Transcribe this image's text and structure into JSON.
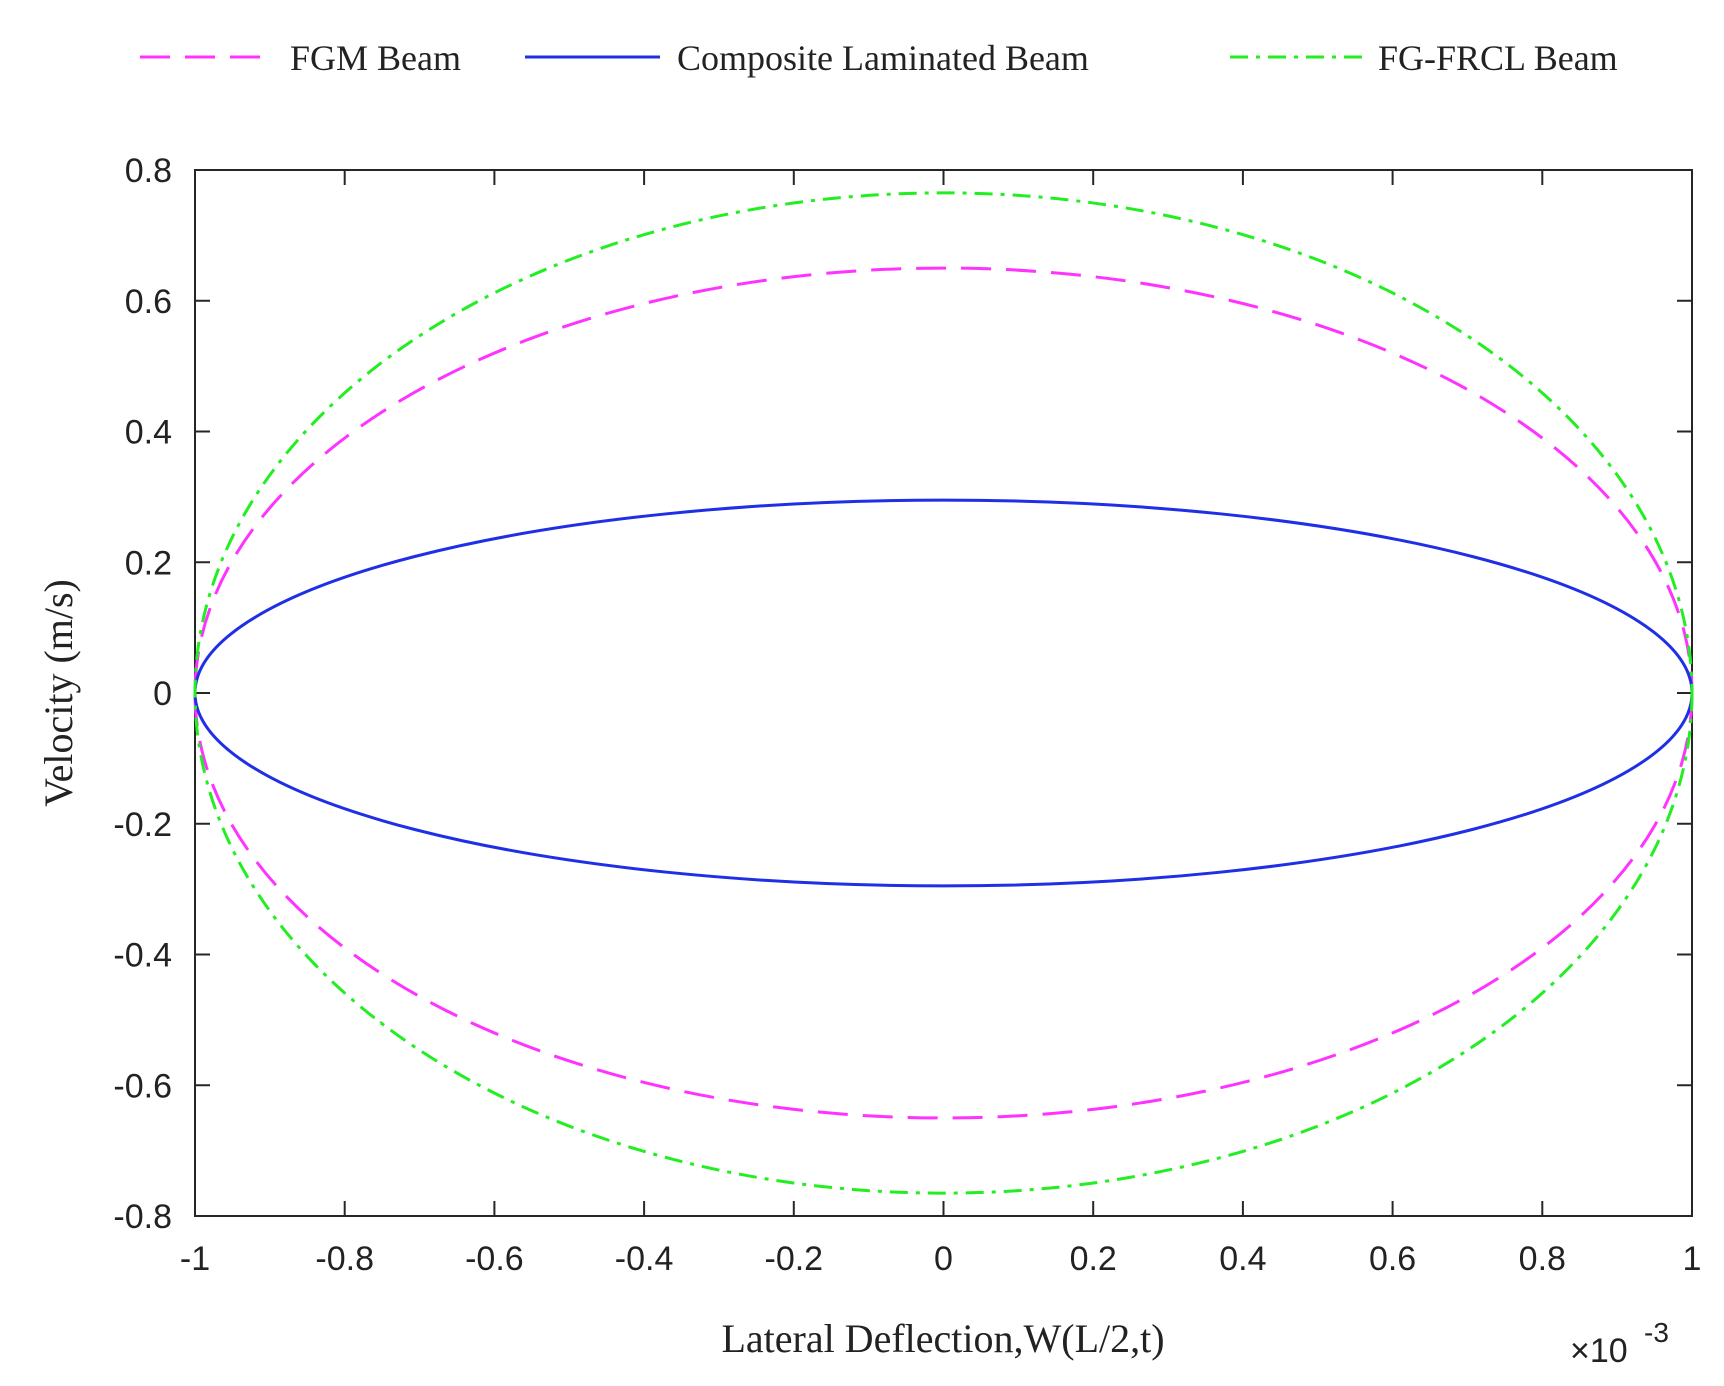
{
  "chart_data": {
    "type": "line",
    "title": "",
    "xlabel": "Lateral Deflection,W(L/2,t)",
    "ylabel": "Velocity (m/s)",
    "x_multiplier_label": "×10",
    "x_multiplier_exponent": "-3",
    "xlim": [
      -1,
      1
    ],
    "ylim": [
      -0.8,
      0.8
    ],
    "xticks": [
      -1,
      -0.8,
      -0.6,
      -0.4,
      -0.2,
      0,
      0.2,
      0.4,
      0.6,
      0.8,
      1
    ],
    "xtick_labels": [
      "-1",
      "-0.8",
      "-0.6",
      "-0.4",
      "-0.2",
      "0",
      "0.2",
      "0.4",
      "0.6",
      "0.8",
      "1"
    ],
    "yticks": [
      0.8,
      0.6,
      0.4,
      0.2,
      0,
      -0.2,
      -0.4,
      -0.6,
      -0.8
    ],
    "ytick_labels": [
      "0.8",
      "0.6",
      "0.4",
      "0.2",
      "0",
      "-0.2",
      "-0.4",
      "-0.6",
      "-0.8"
    ],
    "grid": false,
    "legend_position": "top",
    "series": [
      {
        "name": "FGM Beam",
        "shape": "ellipse (phase portrait)",
        "x_amplitude": 1.0,
        "y_amplitude": 0.65,
        "color": "#ff33ff",
        "style": "dashed"
      },
      {
        "name": "Composite Laminated Beam",
        "shape": "ellipse (phase portrait)",
        "x_amplitude": 1.0,
        "y_amplitude": 0.295,
        "color": "#1f2fe6",
        "style": "solid"
      },
      {
        "name": "FG-FRCL Beam",
        "shape": "ellipse (phase portrait)",
        "x_amplitude": 1.0,
        "y_amplitude": 0.765,
        "color": "#22ee22",
        "style": "dash-dot"
      }
    ]
  }
}
